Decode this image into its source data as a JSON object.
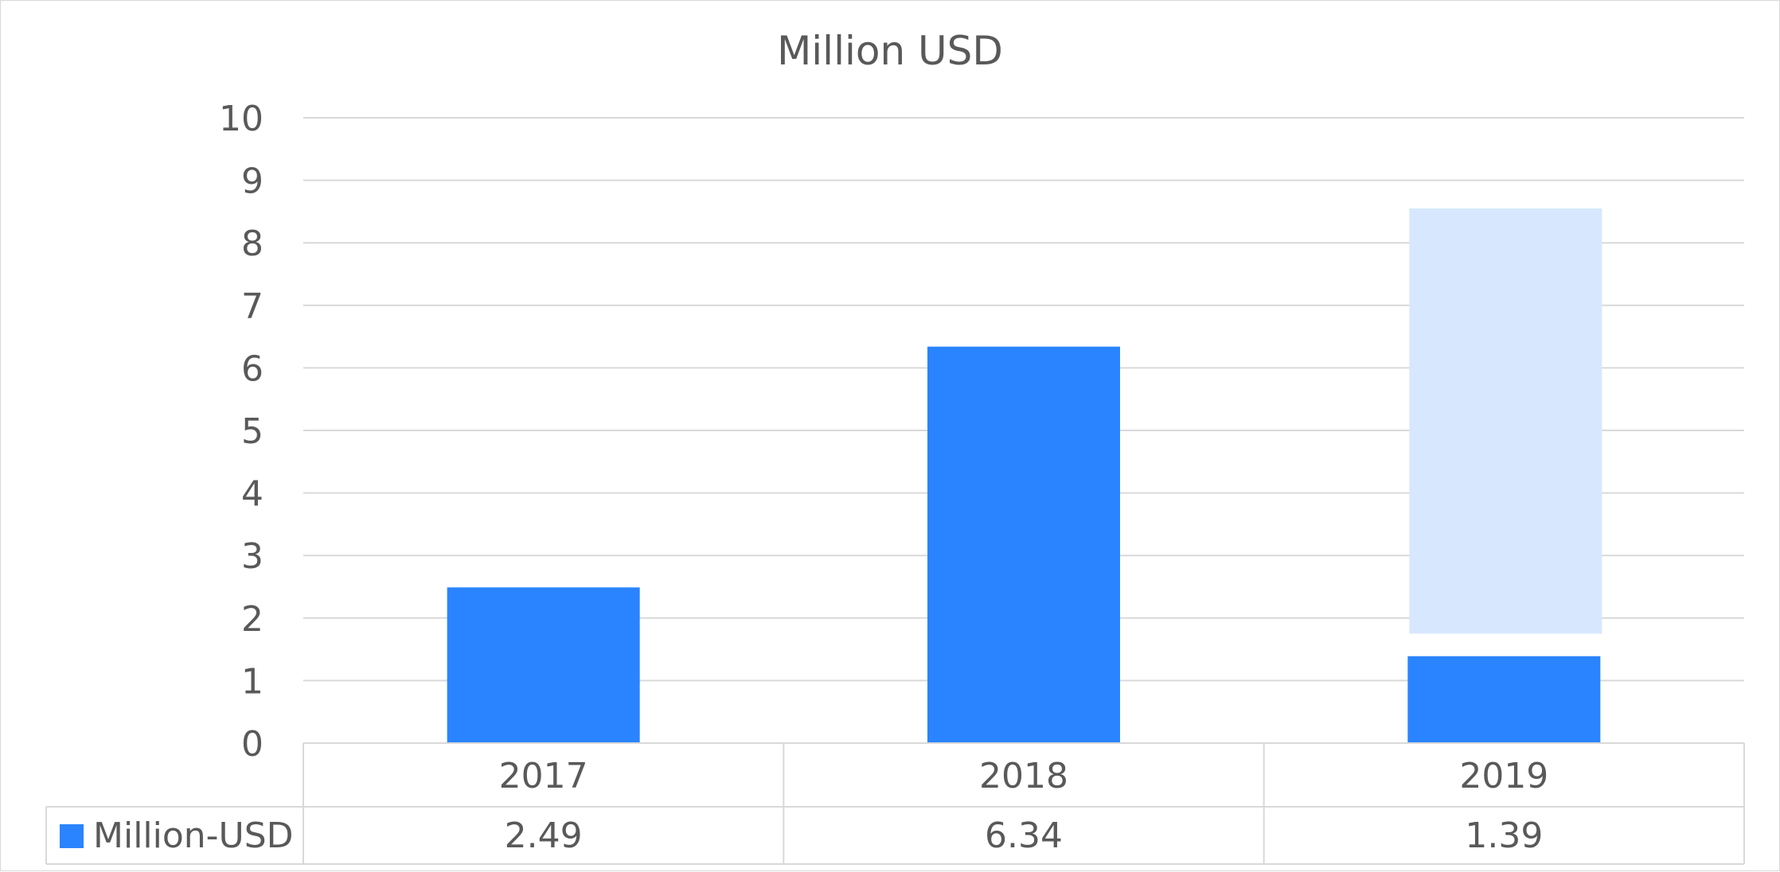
{
  "chart_data": {
    "type": "bar",
    "title": "Million USD",
    "categories": [
      "2017",
      "2018",
      "2019"
    ],
    "series": [
      {
        "name": "Million-USD",
        "values": [
          2.49,
          6.34,
          1.39
        ],
        "color": "#2a84ff"
      }
    ],
    "highlight_range": {
      "category": "2019",
      "from": 1.75,
      "to": 8.55,
      "color": "#d7e7fd"
    },
    "ylim": [
      0,
      10
    ],
    "yticks": [
      "0",
      "1",
      "2",
      "3",
      "4",
      "5",
      "6",
      "7",
      "8",
      "9",
      "10"
    ],
    "grid": true,
    "data_table": true,
    "data_table_values": [
      "2.49",
      "6.34",
      "1.39"
    ],
    "colors": {
      "grid": "#d9d9d9",
      "text": "#595959"
    }
  }
}
